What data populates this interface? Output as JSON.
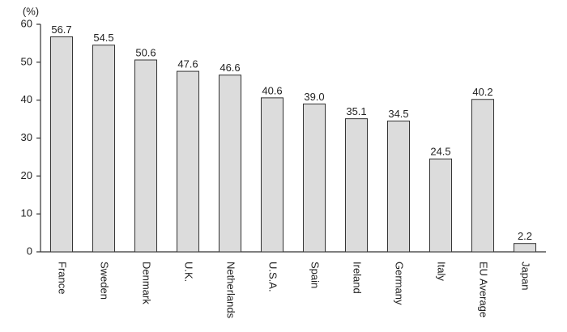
{
  "chart_data": {
    "type": "bar",
    "y_label": "(%)",
    "categories": [
      "France",
      "Sweden",
      "Denmark",
      "U.K.",
      "Netherlands",
      "U.S.A.",
      "Spain",
      "Ireland",
      "Germany",
      "Italy",
      "EU Average",
      "Japan"
    ],
    "values": [
      56.7,
      54.5,
      50.6,
      47.6,
      46.6,
      40.6,
      39.0,
      35.1,
      34.5,
      24.5,
      40.2,
      2.2
    ],
    "value_labels": [
      "56.7",
      "54.5",
      "50.6",
      "47.6",
      "46.6",
      "40.6",
      "39.0",
      "35.1",
      "34.5",
      "24.5",
      "40.2",
      "2.2"
    ],
    "color": "#dcdcdc",
    "ylim": [
      0,
      60
    ],
    "yticks": [
      0,
      10,
      20,
      30,
      40,
      50,
      60
    ],
    "grid": false
  }
}
